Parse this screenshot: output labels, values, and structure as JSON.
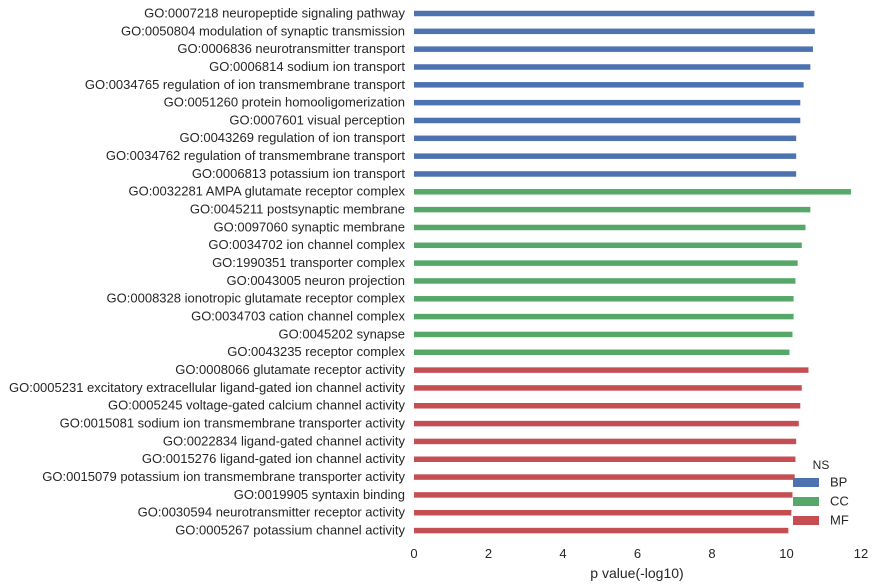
{
  "chart_data": {
    "type": "bar",
    "orientation": "horizontal",
    "xlabel": "p value(-log10)",
    "xlim": [
      0,
      12
    ],
    "xticks": [
      0,
      2,
      4,
      6,
      8,
      10,
      12
    ],
    "grid": false,
    "legend": {
      "title": "NS",
      "placement": "bottom-right",
      "entries": [
        {
          "name": "BP",
          "color": "#4c72b0"
        },
        {
          "name": "CC",
          "color": "#55a868"
        },
        {
          "name": "MF",
          "color": "#c44e52"
        }
      ]
    },
    "categories": [
      {
        "label": "GO:0007218 neuropeptide signaling pathway",
        "group": "BP",
        "value": 10.75
      },
      {
        "label": "GO:0050804 modulation of synaptic transmission",
        "group": "BP",
        "value": 10.76
      },
      {
        "label": "GO:0006836 neurotransmitter transport",
        "group": "BP",
        "value": 10.71
      },
      {
        "label": "GO:0006814 sodium ion transport",
        "group": "BP",
        "value": 10.64
      },
      {
        "label": "GO:0034765 regulation of ion transmembrane transport",
        "group": "BP",
        "value": 10.46
      },
      {
        "label": "GO:0051260 protein homooligomerization",
        "group": "BP",
        "value": 10.37
      },
      {
        "label": "GO:0007601 visual perception",
        "group": "BP",
        "value": 10.37
      },
      {
        "label": "GO:0043269 regulation of ion transport",
        "group": "BP",
        "value": 10.26
      },
      {
        "label": "GO:0034762 regulation of transmembrane transport",
        "group": "BP",
        "value": 10.26
      },
      {
        "label": "GO:0006813 potassium ion transport",
        "group": "BP",
        "value": 10.26
      },
      {
        "label": "GO:0032281 AMPA glutamate receptor complex",
        "group": "CC",
        "value": 11.73
      },
      {
        "label": "GO:0045211 postsynaptic membrane",
        "group": "CC",
        "value": 10.64
      },
      {
        "label": "GO:0097060 synaptic membrane",
        "group": "CC",
        "value": 10.51
      },
      {
        "label": "GO:0034702 ion channel complex",
        "group": "CC",
        "value": 10.41
      },
      {
        "label": "GO:1990351 transporter complex",
        "group": "CC",
        "value": 10.3
      },
      {
        "label": "GO:0043005 neuron projection",
        "group": "CC",
        "value": 10.24
      },
      {
        "label": "GO:0008328 ionotropic glutamate receptor complex",
        "group": "CC",
        "value": 10.19
      },
      {
        "label": "GO:0034703 cation channel complex",
        "group": "CC",
        "value": 10.19
      },
      {
        "label": "GO:0045202 synapse",
        "group": "CC",
        "value": 10.16
      },
      {
        "label": "GO:0043235 receptor complex",
        "group": "CC",
        "value": 10.08
      },
      {
        "label": "GO:0008066 glutamate receptor activity",
        "group": "MF",
        "value": 10.59
      },
      {
        "label": "GO:0005231 excitatory extracellular ligand-gated ion channel activity",
        "group": "MF",
        "value": 10.41
      },
      {
        "label": "GO:0005245 voltage-gated calcium channel activity",
        "group": "MF",
        "value": 10.37
      },
      {
        "label": "GO:0015081 sodium ion transmembrane transporter activity",
        "group": "MF",
        "value": 10.33
      },
      {
        "label": "GO:0022834 ligand-gated channel activity",
        "group": "MF",
        "value": 10.26
      },
      {
        "label": "GO:0015276 ligand-gated ion channel activity",
        "group": "MF",
        "value": 10.24
      },
      {
        "label": "GO:0015079 potassium ion transmembrane transporter activity",
        "group": "MF",
        "value": 10.22
      },
      {
        "label": "GO:0019905 syntaxin binding",
        "group": "MF",
        "value": 10.16
      },
      {
        "label": "GO:0030594 neurotransmitter receptor activity",
        "group": "MF",
        "value": 10.13
      },
      {
        "label": "GO:0005267 potassium channel activity",
        "group": "MF",
        "value": 10.05
      }
    ]
  }
}
